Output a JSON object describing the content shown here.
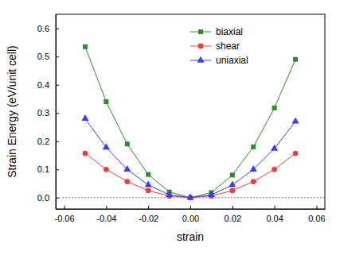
{
  "chart_data": {
    "type": "line",
    "x_label": "strain",
    "y_label": "Strain Energy (eV/unit cell)",
    "x": [
      -0.05,
      -0.04,
      -0.03,
      -0.02,
      -0.01,
      0,
      0.01,
      0.02,
      0.03,
      0.04,
      0.05
    ],
    "series": [
      {
        "name": "biaxial",
        "color": "#2e8b2e",
        "marker": "square",
        "values": [
          0.535,
          0.34,
          0.19,
          0.082,
          0.02,
          0,
          0.018,
          0.08,
          0.18,
          0.318,
          0.49
        ]
      },
      {
        "name": "shear",
        "color": "#f03c3c",
        "marker": "circle",
        "values": [
          0.157,
          0.1,
          0.057,
          0.025,
          0.006,
          0,
          0.006,
          0.025,
          0.057,
          0.1,
          0.157
        ]
      },
      {
        "name": "uniaxial",
        "color": "#3c3cf5",
        "marker": "triangle",
        "values": [
          0.28,
          0.178,
          0.1,
          0.045,
          0.01,
          0,
          0.01,
          0.045,
          0.1,
          0.174,
          0.27
        ]
      }
    ],
    "xlim": [
      -0.064,
      0.064
    ],
    "xticks": [
      -0.06,
      -0.04,
      -0.02,
      {
        "value": 0,
        "label": "0.00"
      },
      0.02,
      0.04,
      0.06
    ],
    "ylim": [
      -0.04,
      0.65
    ],
    "yticks": [
      {
        "value": 0,
        "label": "0.0"
      },
      0.1,
      0.2,
      0.3,
      0.4,
      0.5,
      0.6
    ],
    "legend": "upper center",
    "grid": false
  }
}
